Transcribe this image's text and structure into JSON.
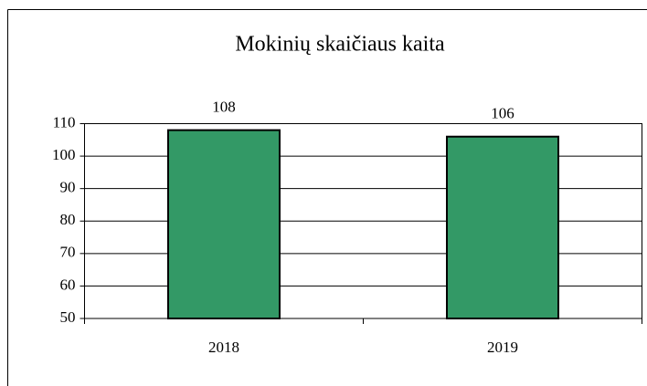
{
  "chart_data": {
    "type": "bar",
    "title": "Mokinių skaičiaus kaita",
    "categories": [
      "2018",
      "2019"
    ],
    "values": [
      108,
      106
    ],
    "color": "#339966",
    "ylim": [
      50,
      110
    ],
    "yticks": [
      50,
      60,
      70,
      80,
      90,
      100,
      110
    ],
    "grid": true
  }
}
